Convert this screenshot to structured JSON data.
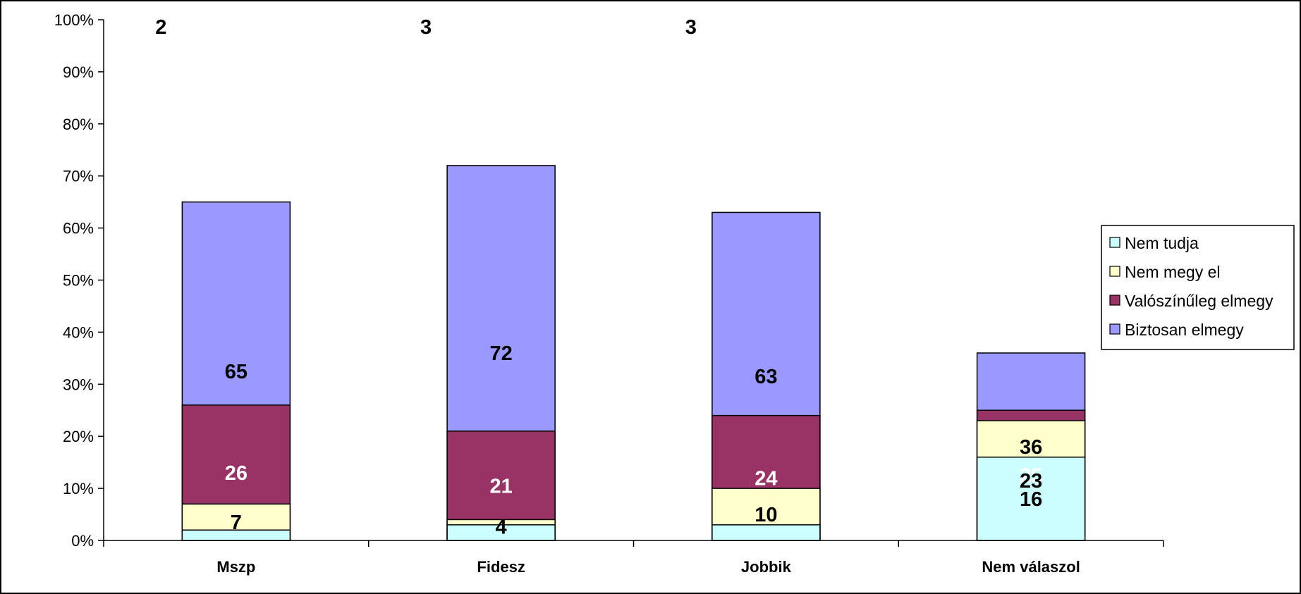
{
  "chart_data": {
    "type": "bar",
    "stacked": true,
    "categories": [
      "Mszp",
      "Fidesz",
      "Jobbik",
      "Nem válaszol"
    ],
    "series": [
      {
        "name": "Biztosan elmegy",
        "values": [
          65,
          72,
          63,
          36
        ],
        "color": "#9999ff",
        "label_color": "#000000"
      },
      {
        "name": "Valószínűleg elmegy",
        "values": [
          26,
          21,
          24,
          25
        ],
        "color": "#993366",
        "label_color": "#ffffff"
      },
      {
        "name": "Nem megy el",
        "values": [
          7,
          4,
          10,
          23
        ],
        "color": "#ffffcc",
        "label_color": "#000000"
      },
      {
        "name": "Nem tudja",
        "values": [
          2,
          3,
          3,
          16
        ],
        "color": "#ccffff",
        "label_color": "#000000"
      }
    ],
    "ylim": [
      0,
      100
    ],
    "yticks": [
      "0%",
      "10%",
      "20%",
      "30%",
      "40%",
      "50%",
      "60%",
      "70%",
      "80%",
      "90%",
      "100%"
    ],
    "grid": false,
    "legend_position": "right",
    "legend_order": [
      "Nem tudja",
      "Nem megy el",
      "Valószínűleg elmegy",
      "Biztosan elmegy"
    ]
  }
}
